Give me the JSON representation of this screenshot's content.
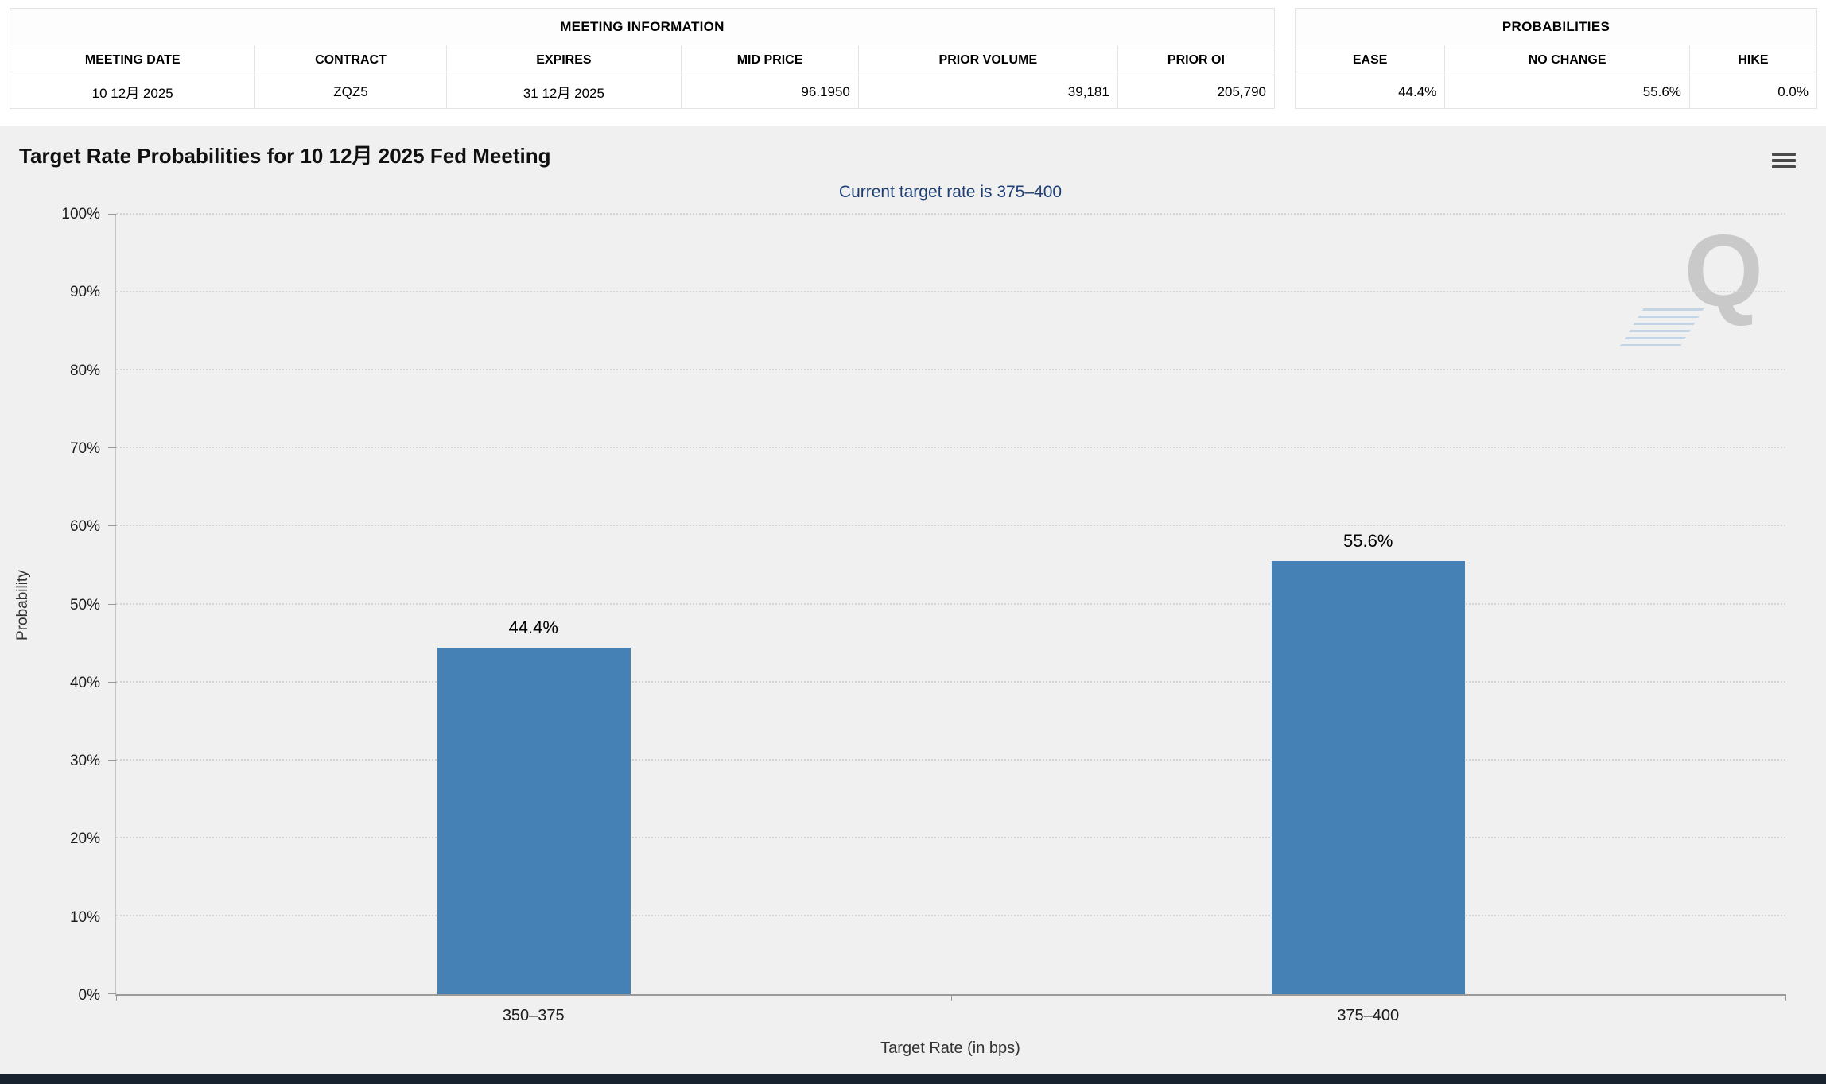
{
  "meeting_info": {
    "title": "MEETING INFORMATION",
    "columns": [
      "MEETING DATE",
      "CONTRACT",
      "EXPIRES",
      "MID PRICE",
      "PRIOR VOLUME",
      "PRIOR OI"
    ],
    "values": [
      "10 12月 2025",
      "ZQZ5",
      "31 12月 2025",
      "96.1950",
      "39,181",
      "205,790"
    ]
  },
  "probabilities": {
    "title": "PROBABILITIES",
    "columns": [
      "EASE",
      "NO CHANGE",
      "HIKE"
    ],
    "values": [
      "44.4%",
      "55.6%",
      "0.0%"
    ]
  },
  "chart_data": {
    "type": "bar",
    "title": "Target Rate Probabilities for 10 12月 2025 Fed Meeting",
    "subtitle": "Current target rate is 375–400",
    "categories": [
      "350–375",
      "375–400"
    ],
    "values": [
      44.4,
      55.6
    ],
    "data_labels": [
      "44.4%",
      "55.6%"
    ],
    "xlabel": "Target Rate (in bps)",
    "ylabel": "Probability",
    "ylim": [
      0,
      100
    ],
    "ytick_step": 10,
    "ytick_suffix": "%",
    "grid": "dotted",
    "legend": "none",
    "bar_color": "#4681B6",
    "subtitle_color": "#1e3f73",
    "watermark": "Q"
  }
}
